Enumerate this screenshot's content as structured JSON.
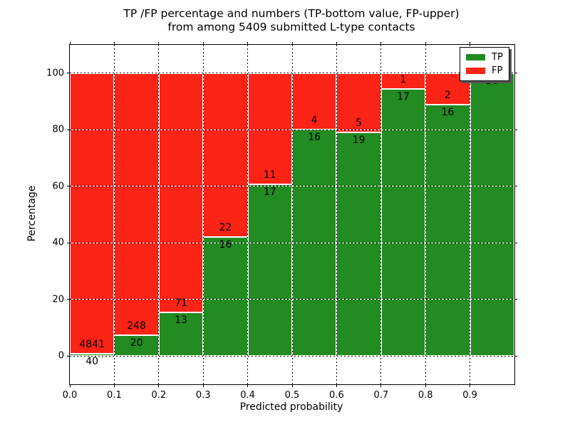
{
  "chart_data": {
    "type": "bar",
    "stacked": true,
    "title": "TP /FP percentage and numbers (TP-bottom value, FP-upper)\nfrom among 5409 submitted L-type contacts",
    "xlabel": "Predicted probability",
    "ylabel": "Percentage",
    "xlim": [
      0.0,
      1.0
    ],
    "ylim": [
      -10,
      110
    ],
    "grid": true,
    "yticks": [
      {
        "v": 0,
        "label": "0"
      },
      {
        "v": 20,
        "label": "20"
      },
      {
        "v": 40,
        "label": "40"
      },
      {
        "v": 60,
        "label": "60"
      },
      {
        "v": 80,
        "label": "80"
      },
      {
        "v": 100,
        "label": "100"
      }
    ],
    "xticks": [
      {
        "v": 0.0,
        "label": "0.0"
      },
      {
        "v": 0.1,
        "label": "0.1"
      },
      {
        "v": 0.2,
        "label": "0.2"
      },
      {
        "v": 0.3,
        "label": "0.3"
      },
      {
        "v": 0.4,
        "label": "0.4"
      },
      {
        "v": 0.5,
        "label": "0.5"
      },
      {
        "v": 0.6,
        "label": "0.6"
      },
      {
        "v": 0.7,
        "label": "0.7"
      },
      {
        "v": 0.8,
        "label": "0.8"
      },
      {
        "v": 0.9,
        "label": "0.9"
      }
    ],
    "colors": {
      "tp": "#228b22",
      "fp": "#fc2317"
    },
    "legend": {
      "position": "upper right",
      "items": [
        {
          "label": "TP",
          "color": "#228b22"
        },
        {
          "label": "FP",
          "color": "#fc2317"
        }
      ]
    },
    "bins": [
      {
        "x0": 0.0,
        "x1": 0.1,
        "tp": 40,
        "fp": 4841,
        "tp_pct": 0.82
      },
      {
        "x0": 0.1,
        "x1": 0.2,
        "tp": 20,
        "fp": 248,
        "tp_pct": 7.46
      },
      {
        "x0": 0.2,
        "x1": 0.3,
        "tp": 13,
        "fp": 71,
        "tp_pct": 15.48
      },
      {
        "x0": 0.3,
        "x1": 0.4,
        "tp": 16,
        "fp": 22,
        "tp_pct": 42.11
      },
      {
        "x0": 0.4,
        "x1": 0.5,
        "tp": 17,
        "fp": 11,
        "tp_pct": 60.71
      },
      {
        "x0": 0.5,
        "x1": 0.6,
        "tp": 16,
        "fp": 4,
        "tp_pct": 80.0
      },
      {
        "x0": 0.6,
        "x1": 0.7,
        "tp": 19,
        "fp": 5,
        "tp_pct": 79.17
      },
      {
        "x0": 0.7,
        "x1": 0.8,
        "tp": 17,
        "fp": 1,
        "tp_pct": 94.44
      },
      {
        "x0": 0.8,
        "x1": 0.9,
        "tp": 16,
        "fp": 2,
        "tp_pct": 88.89
      },
      {
        "x0": 0.9,
        "x1": 1.0,
        "tp": 30,
        "fp": 0,
        "tp_pct": 100.0
      }
    ]
  }
}
